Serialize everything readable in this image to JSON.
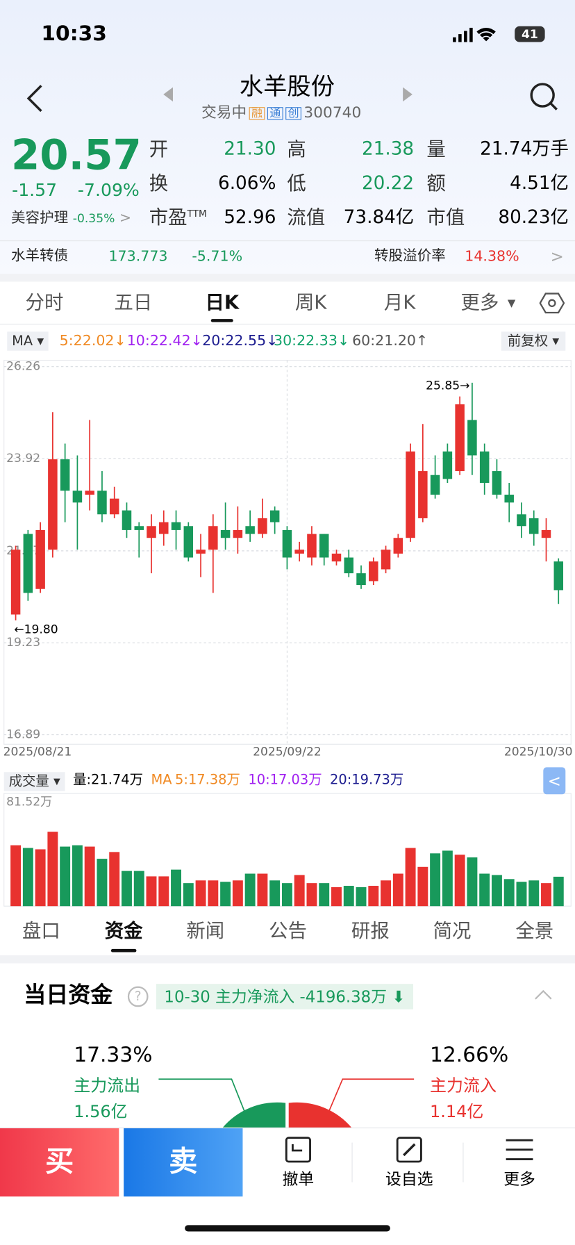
{
  "status_bar": {
    "time": "10:33",
    "battery": "41"
  },
  "header": {
    "name": "水羊股份",
    "status": "交易中",
    "badges": [
      "融",
      "通",
      "创"
    ],
    "code": "300740"
  },
  "quote": {
    "price": "20.57",
    "change": "-1.57",
    "change_pct": "-7.09%",
    "sector": "美容护理",
    "sector_pct": "-0.35%",
    "fields": [
      [
        "开",
        "21.30"
      ],
      [
        "高",
        "21.38"
      ],
      [
        "量",
        "21.74万手"
      ],
      [
        "换",
        "6.06%"
      ],
      [
        "低",
        "20.22"
      ],
      [
        "额",
        "4.51亿"
      ],
      [
        "市盈",
        "52.96"
      ],
      [
        "流值",
        "73.84亿"
      ],
      [
        "市值",
        "80.23亿"
      ]
    ],
    "pe_sup": "TTM"
  },
  "bond": {
    "name": "水羊转债",
    "price": "173.773",
    "change": "-5.71%",
    "premium_label": "转股溢价率",
    "premium": "14.38%"
  },
  "period_tabs": [
    "分时",
    "五日",
    "日K",
    "周K",
    "月K",
    "更多"
  ],
  "chart_data": {
    "type": "candlestick",
    "ma_label": "MA",
    "ma": [
      "5:22.02↓",
      "10:22.42↓",
      "20:22.55↓",
      "30:22.33↓",
      "60:21.20↑"
    ],
    "ma_colors": [
      "#f08a24",
      "#a020f0",
      "#1c1c8f",
      "#11a36b",
      "#555555"
    ],
    "adjust": "前复权",
    "up_color": "#e8322f",
    "down_color": "#18995b",
    "categories": [
      "2025/08/21",
      null,
      null,
      null,
      null,
      null,
      null,
      null,
      null,
      null,
      null,
      null,
      null,
      null,
      null,
      null,
      null,
      null,
      null,
      null,
      null,
      null,
      "2025/09/22",
      null,
      null,
      null,
      null,
      null,
      null,
      null,
      null,
      null,
      null,
      null,
      null,
      null,
      null,
      null,
      null,
      null,
      null,
      null,
      null,
      null,
      "2025/10/30"
    ],
    "open": [
      19.95,
      22.0,
      20.6,
      21.6,
      23.9,
      23.1,
      23.0,
      23.1,
      22.5,
      22.6,
      22.2,
      21.9,
      22.0,
      22.3,
      22.2,
      21.5,
      21.6,
      22.1,
      21.9,
      22.2,
      22.0,
      22.6,
      22.1,
      21.5,
      21.4,
      22.0,
      21.3,
      21.4,
      21.0,
      20.8,
      21.1,
      21.5,
      21.9,
      22.4,
      23.5,
      24.1,
      23.6,
      24.9,
      24.1,
      23.6,
      23.0,
      22.5,
      22.4,
      21.9,
      21.3
    ],
    "close": [
      21.6,
      20.5,
      22.1,
      23.9,
      23.1,
      22.8,
      23.1,
      22.5,
      22.9,
      22.1,
      22.1,
      22.2,
      22.3,
      22.1,
      21.4,
      21.6,
      22.2,
      21.9,
      22.1,
      22.0,
      22.4,
      22.3,
      21.4,
      21.6,
      22.0,
      21.4,
      21.5,
      21.0,
      20.7,
      21.3,
      21.6,
      21.9,
      24.1,
      23.6,
      23.0,
      23.4,
      25.3,
      24.0,
      23.3,
      23.0,
      22.8,
      22.2,
      22.0,
      22.1,
      20.57
    ],
    "high": [
      21.7,
      22.1,
      22.3,
      25.1,
      24.3,
      24.0,
      24.9,
      23.6,
      23.2,
      22.8,
      22.3,
      22.5,
      22.6,
      22.6,
      22.3,
      22.0,
      22.5,
      22.8,
      22.7,
      22.6,
      22.9,
      22.7,
      22.2,
      21.8,
      22.2,
      22.0,
      21.6,
      21.6,
      21.2,
      21.4,
      21.7,
      22.0,
      24.3,
      24.8,
      24.0,
      24.3,
      25.5,
      25.85,
      24.3,
      23.9,
      23.3,
      22.8,
      22.6,
      22.4,
      21.38
    ],
    "low": [
      19.8,
      20.3,
      20.5,
      21.4,
      22.3,
      21.6,
      22.6,
      22.3,
      22.4,
      21.9,
      21.4,
      21.0,
      21.7,
      21.6,
      21.3,
      20.9,
      20.5,
      21.6,
      21.5,
      21.8,
      21.9,
      22.0,
      21.1,
      21.3,
      21.2,
      21.2,
      21.2,
      20.9,
      20.6,
      20.7,
      21.0,
      21.4,
      21.8,
      22.3,
      22.9,
      23.3,
      23.5,
      23.5,
      23.0,
      22.9,
      22.3,
      21.9,
      21.7,
      21.3,
      20.22
    ],
    "ylim": [
      16.89,
      26.26
    ],
    "yticks": [
      26.26,
      23.92,
      21.57,
      19.23,
      16.89
    ],
    "grid": true,
    "annotations": [
      "25.85→",
      "←19.80"
    ],
    "volume": {
      "label": "成交量",
      "current": "量:21.74万",
      "ma_label": "MA",
      "ma": [
        "5:17.38万",
        "10:17.03万",
        "20:19.73万"
      ],
      "values": [
        45,
        43,
        42,
        55,
        44,
        45,
        44,
        35,
        40,
        26,
        26,
        22,
        22,
        27,
        17,
        19,
        19,
        18,
        19,
        24,
        24,
        19,
        17,
        23,
        17,
        17,
        14,
        15,
        14,
        15,
        19,
        24,
        43,
        29,
        39,
        41,
        38,
        36,
        24,
        23,
        20,
        18,
        19,
        17,
        21.74
      ],
      "ylim": [
        0,
        81.52
      ],
      "yticks": [
        {
          "value": 81.52,
          "label": "81.52万"
        }
      ]
    }
  },
  "info_tabs": [
    "盘口",
    "资金",
    "新闻",
    "公告",
    "研报",
    "简况",
    "全景"
  ],
  "fund": {
    "title": "当日资金",
    "tag": "10-30 主力净流入 -4196.38万",
    "out_pct": "17.33%",
    "out_label": "主力流出",
    "out_amount": "1.56亿",
    "in_pct": "12.66%",
    "in_label": "主力流入",
    "in_amount": "1.14亿"
  },
  "actions": {
    "buy": "买",
    "sell": "卖",
    "cancel": "撤单",
    "watch": "设自选",
    "more": "更多"
  }
}
